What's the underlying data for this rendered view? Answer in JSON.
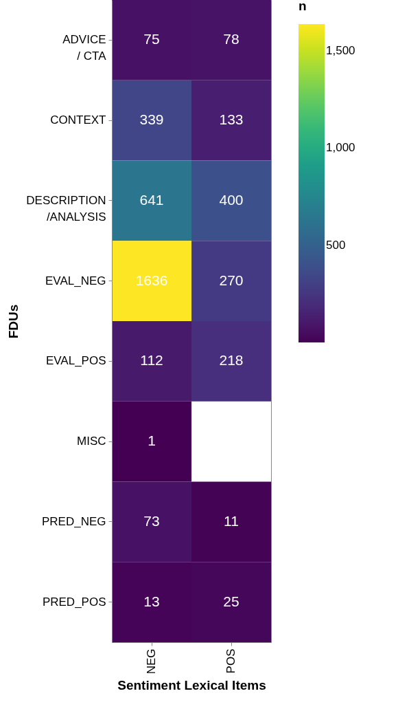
{
  "chart_data": {
    "type": "heatmap",
    "xlabel": "Sentiment Lexical Items",
    "ylabel": "FDUs",
    "clabel": "n",
    "categories": [
      "NEG",
      "POS"
    ],
    "y_categories": [
      "ADVICE\n/ CTA",
      "CONTEXT",
      "DESCRIPTION\n/ANALYSIS",
      "EVAL_NEG",
      "EVAL_POS",
      "MISC",
      "PRED_NEG",
      "PRED_POS"
    ],
    "cells": [
      [
        75,
        78
      ],
      [
        339,
        133
      ],
      [
        641,
        400
      ],
      [
        1636,
        270
      ],
      [
        112,
        218
      ],
      [
        1,
        null
      ],
      [
        73,
        11
      ],
      [
        13,
        25
      ]
    ],
    "clim": [
      1,
      1636
    ],
    "cticks": [
      {
        "value": 500,
        "label": "500"
      },
      {
        "value": 1000,
        "label": "1,000"
      },
      {
        "value": 1500,
        "label": "1,500"
      }
    ],
    "data_labels": true
  }
}
